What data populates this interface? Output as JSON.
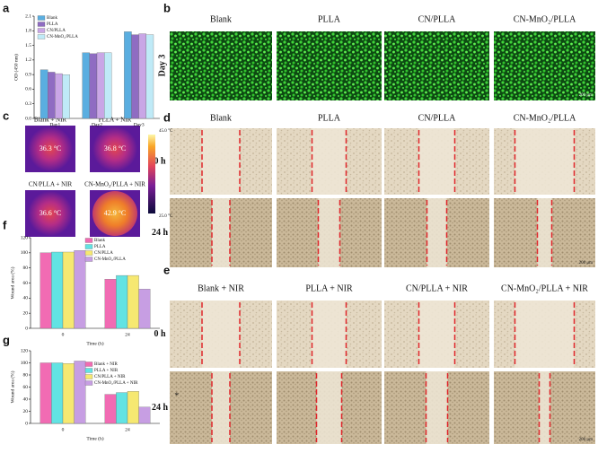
{
  "panel_labels": [
    "a",
    "b",
    "c",
    "d",
    "e",
    "f",
    "g"
  ],
  "chart_data": [
    {
      "type": "bar",
      "ylabel": "OD (450 nm)",
      "categories": [
        "Day1",
        "Day2",
        "Day3"
      ],
      "series": [
        {
          "name": "Blank",
          "color": "#5aaee0",
          "values": [
            1.0,
            1.35,
            1.78
          ]
        },
        {
          "name": "PLLA",
          "color": "#8f6cc2",
          "values": [
            0.95,
            1.33,
            1.72
          ]
        },
        {
          "name": "CN/PLLA",
          "color": "#c9a6e6",
          "values": [
            0.92,
            1.35,
            1.74
          ]
        },
        {
          "name": "CN-MnO₂/PLLA",
          "color": "#bfeaf7",
          "values": [
            0.9,
            1.35,
            1.72
          ]
        }
      ],
      "ylim": [
        0,
        2.1
      ],
      "yticks": [
        {
          "value": 0,
          "label": "0.0"
        },
        0.3,
        0.6,
        0.9,
        1.2,
        1.5,
        1.8,
        2.1
      ]
    },
    {
      "type": "bar",
      "ylabel": "Wound area (%)",
      "xlabel": "Time (h)",
      "categories": [
        "0",
        "24"
      ],
      "series": [
        {
          "name": "Blank",
          "color": "#f16bb3",
          "values": [
            100,
            65
          ]
        },
        {
          "name": "PLLA",
          "color": "#62e3e3",
          "values": [
            101,
            70
          ]
        },
        {
          "name": "CN/PLLA",
          "color": "#f6e871",
          "values": [
            101,
            70
          ]
        },
        {
          "name": "CN-MnO₂/PLLA",
          "color": "#c79ee3",
          "values": [
            103,
            52
          ]
        }
      ],
      "ylim": [
        0,
        120
      ],
      "yticks": [
        0,
        20,
        40,
        60,
        80,
        100,
        120
      ]
    },
    {
      "type": "bar",
      "ylabel": "Wound area (%)",
      "xlabel": "Time (h)",
      "categories": [
        "0",
        "24"
      ],
      "series": [
        {
          "name": "Blank + NIR",
          "color": "#f16bb3",
          "values": [
            100,
            48
          ]
        },
        {
          "name": "PLLA + NIR",
          "color": "#62e3e3",
          "values": [
            100,
            51
          ]
        },
        {
          "name": "CN/PLLA + NIR",
          "color": "#f6e871",
          "values": [
            99,
            53
          ]
        },
        {
          "name": "CN-MnO₂/PLLA + NIR",
          "color": "#c79ee3",
          "values": [
            103,
            27
          ]
        }
      ],
      "ylim": [
        0,
        120
      ],
      "yticks": [
        0,
        20,
        40,
        60,
        80,
        100,
        120
      ],
      "annotation": "*"
    }
  ],
  "panel_b": {
    "columns": [
      "Blank",
      "PLLA",
      "CN/PLLA",
      "CN-MnO₂/PLLA"
    ],
    "row_label": "Day 3",
    "scale_bar": "200 μm"
  },
  "panel_c": {
    "images": [
      {
        "label": "Blank + NIR",
        "temperature": "36.3 °C"
      },
      {
        "label": "PLLA + NIR",
        "temperature": "36.8 °C"
      },
      {
        "label": "CN/PLLA + NIR",
        "temperature": "36.6 °C"
      },
      {
        "label": "CN-MnO₂/PLLA + NIR",
        "temperature": "42.9 °C"
      }
    ],
    "colorbar": {
      "max": "45.0 °C",
      "min": "25.0 °C"
    }
  },
  "panel_d": {
    "columns": [
      "Blank",
      "PLLA",
      "CN/PLLA",
      "CN-MnO₂/PLLA"
    ],
    "rows": [
      "0 h",
      "24 h"
    ],
    "scale_bar": "200 μm"
  },
  "panel_e": {
    "columns": [
      "Blank + NIR",
      "PLLA + NIR",
      "CN/PLLA + NIR",
      "CN-MnO₂/PLLA + NIR"
    ],
    "rows": [
      "0 h",
      "24 h"
    ],
    "scale_bar": "200 μm"
  }
}
